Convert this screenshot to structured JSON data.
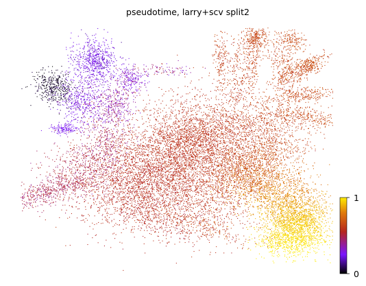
{
  "chart_data": {
    "type": "scatter",
    "title": "pseudotime, larry+scv split2",
    "color_variable": "pseudotime",
    "color_range": [
      0,
      1
    ],
    "colormap": "gnuplot",
    "colorbar": {
      "ticks": [
        "0",
        "1"
      ],
      "stops": [
        "#000000",
        "#7a14ff",
        "#b5261e",
        "#e07a0a",
        "#ffee00"
      ]
    },
    "axes_visible": false,
    "grid": false,
    "embedding_regions": [
      {
        "region": "top-left dark patch",
        "approx_pseudotime": 0.05
      },
      {
        "region": "upper-left purple cluster",
        "approx_pseudotime": 0.25
      },
      {
        "region": "left lower arm",
        "approx_pseudotime": 0.5
      },
      {
        "region": "central mass",
        "approx_pseudotime": 0.58
      },
      {
        "region": "top-right fan branches",
        "approx_pseudotime": 0.6
      },
      {
        "region": "lower-right orange-yellow tip",
        "approx_pseudotime": 0.95
      }
    ]
  }
}
